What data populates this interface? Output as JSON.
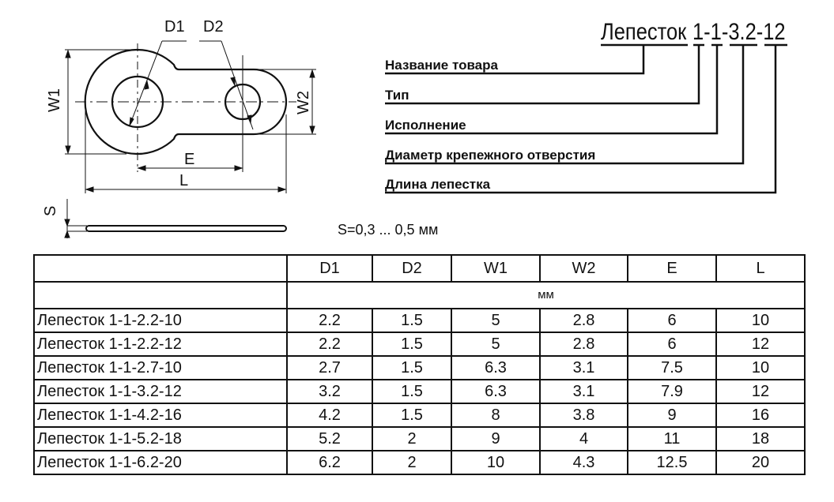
{
  "drawing": {
    "labels": {
      "d1": "D1",
      "d2": "D2",
      "w1": "W1",
      "w2": "W2",
      "e": "E",
      "l": "L",
      "s": "S"
    },
    "thickness_note": "S=0,3 ... 0,5 мм"
  },
  "designation": {
    "title_name": "Лепесток",
    "title_code": "1-1-3.2-12",
    "parts": [
      "Название товара",
      "Тип",
      "Исполнение",
      "Диаметр крепежного отверстия",
      "Длина лепестка"
    ]
  },
  "table": {
    "columns": [
      "",
      "D1",
      "D2",
      "W1",
      "W2",
      "E",
      "L"
    ],
    "unit": "мм",
    "rows": [
      [
        "Лепесток 1-1-2.2-10",
        "2.2",
        "1.5",
        "5",
        "2.8",
        "6",
        "10"
      ],
      [
        "Лепесток 1-1-2.2-12",
        "2.2",
        "1.5",
        "5",
        "2.8",
        "6",
        "12"
      ],
      [
        "Лепесток 1-1-2.7-10",
        "2.7",
        "1.5",
        "6.3",
        "3.1",
        "7.5",
        "10"
      ],
      [
        "Лепесток 1-1-3.2-12",
        "3.2",
        "1.5",
        "6.3",
        "3.1",
        "7.9",
        "12"
      ],
      [
        "Лепесток 1-1-4.2-16",
        "4.2",
        "1.5",
        "8",
        "3.8",
        "9",
        "16"
      ],
      [
        "Лепесток 1-1-5.2-18",
        "5.2",
        "2",
        "9",
        "4",
        "11",
        "18"
      ],
      [
        "Лепесток 1-1-6.2-20",
        "6.2",
        "2",
        "10",
        "4.3",
        "12.5",
        "20"
      ]
    ]
  }
}
